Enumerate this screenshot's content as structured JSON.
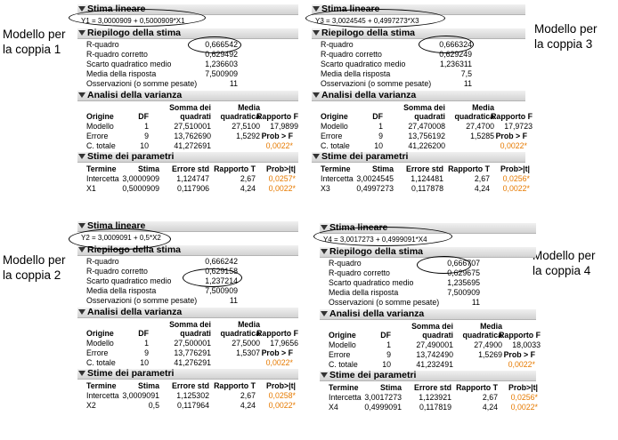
{
  "captions": {
    "p1": [
      "Modello per",
      "la coppia 1"
    ],
    "p2": [
      "Modello per",
      "la coppia 2"
    ],
    "p3": [
      "Modello per",
      "la coppia 3"
    ],
    "p4": [
      "Modello per",
      "la coppia 4"
    ]
  },
  "common": {
    "header": "Stima lineare",
    "summary_title": "Riepilogo della stima",
    "summary_labels": [
      "R-quadro",
      "R-quadro corretto",
      "Scarto quadratico medio",
      "Media della risposta",
      "Osservazioni (o somme pesate)"
    ],
    "anova_title": "Analisi della varianza",
    "anova_headers": {
      "origine": "Origine",
      "df": "DF",
      "somma1": "Somma dei",
      "somma2": "quadrati",
      "media1": "Media",
      "media2": "quadratica",
      "rapporto": "Rapporto F",
      "prob": "Prob > F"
    },
    "anova_rows": [
      "Modello",
      "Errore",
      "C. totale"
    ],
    "params_title": "Stime dei parametri",
    "params_headers": [
      "Termine",
      "Stima",
      "Errore std",
      "Rapporto T",
      "Prob>|t|"
    ]
  },
  "panels": [
    {
      "equation": "Y1 = 3,0000909 + 0,5000909*X1",
      "summary_values": [
        "0,666542",
        "0,629492",
        "1,236603",
        "7,500909",
        "11"
      ],
      "anova": {
        "df": [
          "1",
          "9",
          "10"
        ],
        "ss": [
          "27,510001",
          "13,762690",
          "41,272691"
        ],
        "ms": [
          "27,5100",
          "1,5292",
          ""
        ],
        "f": "17,9899",
        "prob": "0,0022*"
      },
      "params": [
        {
          "term": "Intercetta",
          "stima": "3,0000909",
          "err": "1,124747",
          "t": "2,67",
          "p": "0,0257*"
        },
        {
          "term": "X1",
          "stima": "0,5000909",
          "err": "0,117906",
          "t": "4,24",
          "p": "0,0022*"
        }
      ]
    },
    {
      "equation": "Y3 = 3,0024545 + 0,4997273*X3",
      "summary_values": [
        "0,666324",
        "0,629249",
        "1,236311",
        "7,5",
        "11"
      ],
      "anova": {
        "df": [
          "1",
          "9",
          "10"
        ],
        "ss": [
          "27,470008",
          "13,756192",
          "41,226200"
        ],
        "ms": [
          "27,4700",
          "1,5285",
          ""
        ],
        "f": "17,9723",
        "prob": "0,0022*"
      },
      "params": [
        {
          "term": "Intercetta",
          "stima": "3,0024545",
          "err": "1,124481",
          "t": "2,67",
          "p": "0,0256*"
        },
        {
          "term": "X3",
          "stima": "0,4997273",
          "err": "0,117878",
          "t": "4,24",
          "p": "0,0022*"
        }
      ]
    },
    {
      "equation": "Y2 = 3,0009091 + 0,5*X2",
      "summary_values": [
        "0,666242",
        "0,629158",
        "1,237214",
        "7,500909",
        "11"
      ],
      "anova": {
        "df": [
          "1",
          "9",
          "10"
        ],
        "ss": [
          "27,500001",
          "13,776291",
          "41,276291"
        ],
        "ms": [
          "27,5000",
          "1,5307",
          ""
        ],
        "f": "17,9656",
        "prob": "0,0022*"
      },
      "params": [
        {
          "term": "Intercetta",
          "stima": "3,0009091",
          "err": "1,125302",
          "t": "2,67",
          "p": "0,0258*"
        },
        {
          "term": "X2",
          "stima": "0,5",
          "err": "0,117964",
          "t": "4,24",
          "p": "0,0022*"
        }
      ]
    },
    {
      "equation": "Y4 = 3,0017273 + 0,4999091*X4",
      "summary_values": [
        "0,666707",
        "0,629675",
        "1,235695",
        "7,500909",
        "11"
      ],
      "anova": {
        "df": [
          "1",
          "9",
          "10"
        ],
        "ss": [
          "27,490001",
          "13,742490",
          "41,232491"
        ],
        "ms": [
          "27,4900",
          "1,5269",
          ""
        ],
        "f": "18,0033",
        "prob": "0,0022*"
      },
      "params": [
        {
          "term": "Intercetta",
          "stima": "3,0017273",
          "err": "1,123921",
          "t": "2,67",
          "p": "0,0256*"
        },
        {
          "term": "X4",
          "stima": "0,4999091",
          "err": "0,117819",
          "t": "4,24",
          "p": "0,0022*"
        }
      ]
    }
  ]
}
